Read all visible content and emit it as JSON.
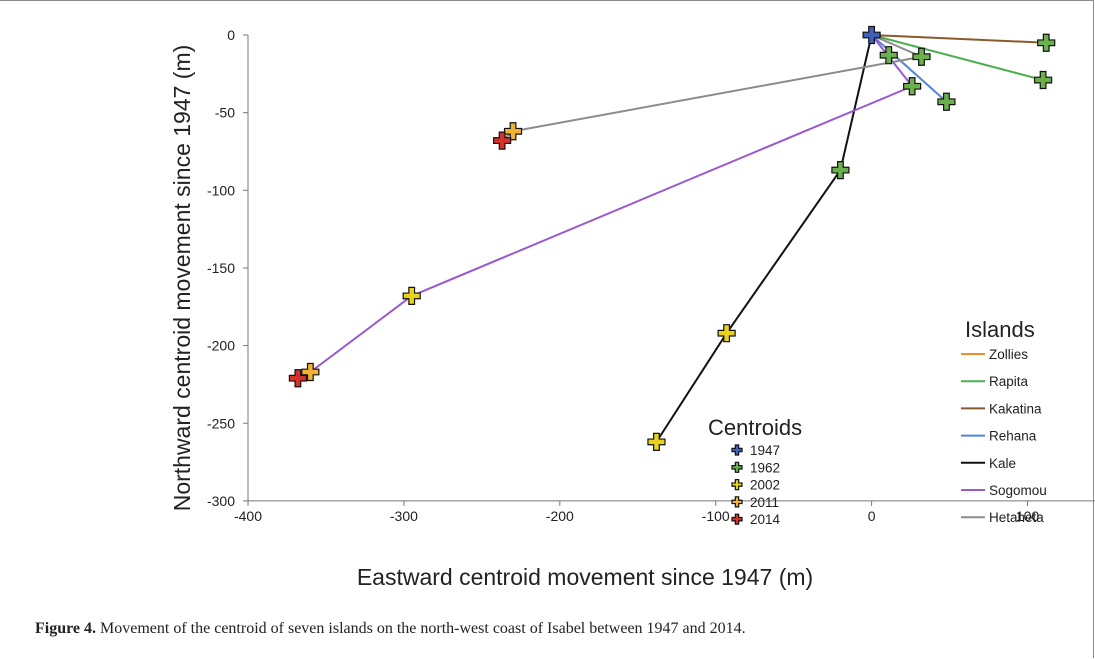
{
  "chart_data": {
    "type": "line",
    "title": "",
    "xlabel": "Eastward centroid movement since 1947 (m)",
    "ylabel": "Northward centroid movement since 1947 (m)",
    "xlim": [
      -400,
      150
    ],
    "ylim": [
      -300,
      0
    ],
    "xticks": [
      -400,
      -300,
      -200,
      -100,
      0,
      100
    ],
    "yticks": [
      0,
      -50,
      -100,
      -150,
      -200,
      -250,
      -300
    ],
    "grid": false,
    "islands_legend_title": "Islands",
    "centroids_legend_title": "Centroids",
    "years": [
      {
        "label": "1947",
        "color": "#3f5fb8"
      },
      {
        "label": "1962",
        "color": "#6ab04c"
      },
      {
        "label": "2002",
        "color": "#e8d21c"
      },
      {
        "label": "2011",
        "color": "#f2b233"
      },
      {
        "label": "2014",
        "color": "#d6302a"
      }
    ],
    "series": [
      {
        "name": "Zollies",
        "color": "#f28e2b",
        "points": [
          {
            "x": 0,
            "y": 0,
            "year": "1947"
          }
        ]
      },
      {
        "name": "Rapita",
        "color": "#4caf50",
        "points": [
          {
            "x": 0,
            "y": 0,
            "year": "1947"
          },
          {
            "x": 110,
            "y": -29,
            "year": "1962"
          }
        ]
      },
      {
        "name": "Kakatina",
        "color": "#8b5a2b",
        "points": [
          {
            "x": 0,
            "y": 0,
            "year": "1947"
          },
          {
            "x": 112,
            "y": -5,
            "year": "1962"
          }
        ]
      },
      {
        "name": "Rehana",
        "color": "#4f86d9",
        "points": [
          {
            "x": 0,
            "y": 0,
            "year": "1947"
          },
          {
            "x": 48,
            "y": -43,
            "year": "1962"
          }
        ]
      },
      {
        "name": "Kale",
        "color": "#111111",
        "points": [
          {
            "x": 0,
            "y": 0,
            "year": "1947"
          },
          {
            "x": -20,
            "y": -87,
            "year": "1962"
          },
          {
            "x": -93,
            "y": -192,
            "year": "2002"
          },
          {
            "x": -138,
            "y": -262,
            "year": "2002"
          }
        ]
      },
      {
        "name": "Sogomou",
        "color": "#9b59d0",
        "points": [
          {
            "x": 0,
            "y": 0,
            "year": "1947"
          },
          {
            "x": 26,
            "y": -33,
            "year": "1962"
          },
          {
            "x": -295,
            "y": -168,
            "year": "2002"
          },
          {
            "x": -360,
            "y": -217,
            "year": "2011"
          },
          {
            "x": -368,
            "y": -221,
            "year": "2014"
          }
        ]
      },
      {
        "name": "Hetaheta",
        "color": "#8c8c8c",
        "points": [
          {
            "x": 0,
            "y": 0,
            "year": "1947"
          },
          {
            "x": 32,
            "y": -14,
            "year": "1962"
          },
          {
            "x": -230,
            "y": -62,
            "year": "2011"
          },
          {
            "x": -237,
            "y": -68,
            "year": "2014"
          }
        ]
      }
    ],
    "extra_markers": [
      {
        "x": 11,
        "y": -13,
        "year": "1962"
      }
    ]
  },
  "caption": {
    "label": "Figure 4.",
    "text": " Movement of the centroid of seven islands on the north-west coast of Isabel between 1947 and 2014."
  }
}
